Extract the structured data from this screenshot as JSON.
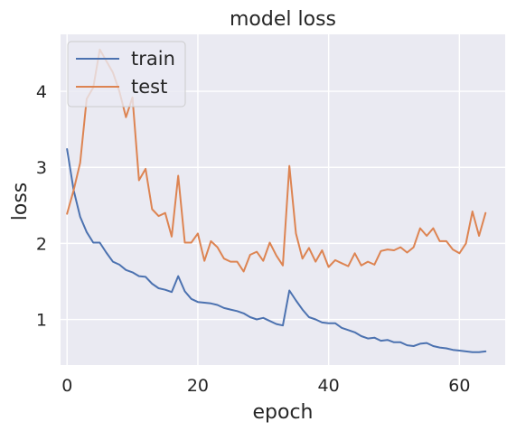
{
  "chart_data": {
    "type": "line",
    "title": "model loss",
    "xlabel": "epoch",
    "ylabel": "loss",
    "xlim": [
      -1,
      67
    ],
    "ylim": [
      0.4,
      4.75
    ],
    "xticks": [
      0,
      20,
      40,
      60
    ],
    "yticks": [
      1,
      2,
      3,
      4
    ],
    "grid": true,
    "legend_position": "top-left",
    "x": [
      0,
      1,
      2,
      3,
      4,
      5,
      6,
      7,
      8,
      9,
      10,
      11,
      12,
      13,
      14,
      15,
      16,
      17,
      18,
      19,
      20,
      21,
      22,
      23,
      24,
      25,
      26,
      27,
      28,
      29,
      30,
      31,
      32,
      33,
      34,
      35,
      36,
      37,
      38,
      39,
      40,
      41,
      42,
      43,
      44,
      45,
      46,
      47,
      48,
      49,
      50,
      51,
      52,
      53,
      54,
      55,
      56,
      57,
      58,
      59,
      60,
      61,
      62,
      63,
      64
    ],
    "series": [
      {
        "name": "train",
        "color": "#4c72b0",
        "values": [
          3.24,
          2.7,
          2.35,
          2.15,
          2.01,
          2.01,
          1.88,
          1.76,
          1.72,
          1.65,
          1.62,
          1.57,
          1.56,
          1.47,
          1.41,
          1.39,
          1.36,
          1.57,
          1.37,
          1.27,
          1.23,
          1.22,
          1.21,
          1.19,
          1.15,
          1.13,
          1.11,
          1.08,
          1.03,
          1.0,
          1.02,
          0.98,
          0.94,
          0.92,
          1.38,
          1.25,
          1.13,
          1.03,
          1.0,
          0.96,
          0.95,
          0.95,
          0.89,
          0.86,
          0.83,
          0.78,
          0.75,
          0.76,
          0.72,
          0.73,
          0.7,
          0.7,
          0.66,
          0.65,
          0.68,
          0.69,
          0.65,
          0.63,
          0.62,
          0.6,
          0.59,
          0.58,
          0.57,
          0.57,
          0.58
        ]
      },
      {
        "name": "test",
        "color": "#dd8452",
        "values": [
          2.39,
          2.7,
          3.06,
          3.9,
          4.05,
          4.55,
          4.4,
          4.25,
          4.0,
          3.66,
          3.92,
          2.83,
          2.98,
          2.45,
          2.36,
          2.4,
          2.09,
          2.89,
          2.01,
          2.01,
          2.13,
          1.77,
          2.03,
          1.95,
          1.8,
          1.76,
          1.76,
          1.63,
          1.85,
          1.89,
          1.77,
          2.01,
          1.84,
          1.71,
          3.02,
          2.13,
          1.8,
          1.94,
          1.76,
          1.91,
          1.69,
          1.78,
          1.74,
          1.7,
          1.87,
          1.71,
          1.76,
          1.72,
          1.9,
          1.92,
          1.91,
          1.95,
          1.88,
          1.95,
          2.2,
          2.1,
          2.2,
          2.03,
          2.03,
          1.92,
          1.87,
          2.0,
          2.42,
          2.1,
          2.4
        ]
      }
    ]
  }
}
